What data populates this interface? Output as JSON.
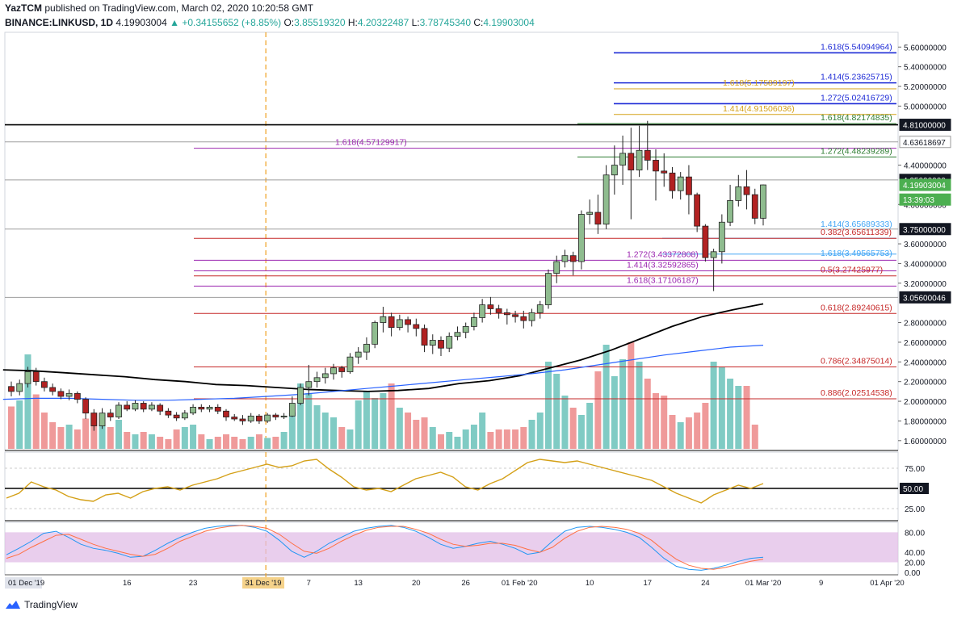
{
  "header": {
    "author": "YazTCM",
    "published_text": "published on TradingView.com, March 02, 2020 10:20:58 GMT",
    "symbol": "BINANCE:LINKUSD, 1D",
    "last": "4.19903004",
    "change": "▲ +0.34155652 (+8.85%)",
    "o_label": "O:",
    "o": "3.85519320",
    "h_label": "H:",
    "h": "4.20322487",
    "l_label": "L:",
    "l": "3.78745340",
    "c_label": "C:",
    "c": "4.19903004"
  },
  "footer": {
    "brand": "TradingView"
  },
  "colors": {
    "up": "#26a69a",
    "down": "#ef5350",
    "candle_up_fill": "#8fbc8f",
    "candle_down_fill": "#b22222",
    "vol_up": "#80cbc4",
    "vol_down": "#ef9a9a",
    "ma_black": "#000000",
    "ma_blue": "#2962ff",
    "fib_blue": "#1e2bd6",
    "fib_gold": "#d4a017",
    "fib_green": "#2e7d32",
    "fib_purple": "#9c27b0",
    "fib_red": "#c62828",
    "rsi_line": "#d4a017",
    "stoch_k": "#2196f3",
    "stoch_d": "#ff7043",
    "stoch_band": "#e1bee7"
  },
  "chart_data": [
    {
      "type": "candlestick",
      "title": "LINKUSD 1D",
      "x_tick_labels": [
        "01 Dec '19",
        "16",
        "23",
        "31 Dec '19",
        "7",
        "13",
        "20",
        "26",
        "01 Feb '20",
        "10",
        "17",
        "24",
        "01 Mar '20",
        "9",
        "01 Apr '20"
      ],
      "y_tick_labels": [
        "5.60000000",
        "5.40000000",
        "5.20000000",
        "5.00000000",
        "4.40000000",
        "4.00000000",
        "3.60000000",
        "3.40000000",
        "3.20000000",
        "2.80000000",
        "2.60000000",
        "2.40000000",
        "2.20000000",
        "2.00000000",
        "1.80000000",
        "1.60000000"
      ],
      "ylim": [
        1.5,
        5.75
      ],
      "price_badges": [
        {
          "label": "4.81000000",
          "value": 4.81,
          "style": "dark"
        },
        {
          "label": "4.63618697",
          "value": 4.63618697,
          "style": "light"
        },
        {
          "label": "4.25000000",
          "value": 4.25,
          "style": "dark"
        },
        {
          "label": "4.19903004",
          "value": 4.19903004,
          "style": "green"
        },
        {
          "label": "13:39:03",
          "value": 4.05,
          "style": "green"
        },
        {
          "label": "3.75000000",
          "value": 3.75,
          "style": "dark"
        },
        {
          "label": "3.05600046",
          "value": 3.05600046,
          "style": "dark"
        }
      ],
      "candles": [
        [
          2.15,
          2.1,
          2.2,
          2.05
        ],
        [
          2.1,
          2.18,
          2.22,
          2.06
        ],
        [
          2.18,
          2.3,
          2.35,
          2.14
        ],
        [
          2.3,
          2.2,
          2.34,
          2.16
        ],
        [
          2.2,
          2.14,
          2.24,
          2.1
        ],
        [
          2.14,
          2.1,
          2.18,
          2.06
        ],
        [
          2.1,
          2.05,
          2.13,
          2.02
        ],
        [
          2.05,
          2.08,
          2.12,
          2.01
        ],
        [
          2.08,
          2.02,
          2.1,
          1.98
        ],
        [
          2.02,
          1.88,
          2.04,
          1.82
        ],
        [
          1.88,
          1.75,
          1.92,
          1.7
        ],
        [
          1.75,
          1.88,
          1.93,
          1.72
        ],
        [
          1.88,
          1.84,
          1.92,
          1.8
        ],
        [
          1.84,
          1.96,
          1.99,
          1.82
        ],
        [
          1.96,
          1.92,
          2.0,
          1.9
        ],
        [
          1.92,
          1.98,
          2.01,
          1.9
        ],
        [
          1.98,
          1.92,
          2.0,
          1.89
        ],
        [
          1.92,
          1.96,
          1.99,
          1.9
        ],
        [
          1.96,
          1.9,
          1.98,
          1.86
        ],
        [
          1.9,
          1.86,
          1.93,
          1.83
        ],
        [
          1.86,
          1.83,
          1.89,
          1.8
        ],
        [
          1.83,
          1.88,
          1.91,
          1.81
        ],
        [
          1.88,
          1.94,
          1.97,
          1.86
        ],
        [
          1.94,
          1.92,
          1.97,
          1.89
        ],
        [
          1.92,
          1.94,
          1.96,
          1.89
        ],
        [
          1.94,
          1.9,
          1.97,
          1.87
        ],
        [
          1.9,
          1.84,
          1.92,
          1.8
        ],
        [
          1.84,
          1.82,
          1.87,
          1.8
        ],
        [
          1.82,
          1.8,
          1.86,
          1.76
        ],
        [
          1.8,
          1.85,
          1.88,
          1.78
        ],
        [
          1.85,
          1.8,
          1.87,
          1.77
        ],
        [
          1.8,
          1.86,
          1.88,
          1.78
        ],
        [
          1.86,
          1.84,
          1.88,
          1.81
        ],
        [
          1.84,
          1.85,
          1.88,
          1.82
        ],
        [
          1.85,
          1.98,
          2.05,
          1.84
        ],
        [
          1.98,
          2.14,
          2.18,
          1.96
        ],
        [
          2.14,
          2.2,
          2.37,
          2.06
        ],
        [
          2.2,
          2.24,
          2.3,
          2.14
        ],
        [
          2.24,
          2.28,
          2.34,
          2.18
        ],
        [
          2.28,
          2.34,
          2.38,
          2.22
        ],
        [
          2.34,
          2.3,
          2.36,
          2.24
        ],
        [
          2.3,
          2.45,
          2.49,
          2.28
        ],
        [
          2.45,
          2.5,
          2.55,
          2.38
        ],
        [
          2.5,
          2.58,
          2.65,
          2.42
        ],
        [
          2.58,
          2.8,
          2.82,
          2.54
        ],
        [
          2.8,
          2.86,
          2.96,
          2.7
        ],
        [
          2.86,
          2.75,
          2.9,
          2.66
        ],
        [
          2.75,
          2.83,
          2.88,
          2.72
        ],
        [
          2.83,
          2.78,
          2.86,
          2.7
        ],
        [
          2.78,
          2.74,
          2.84,
          2.66
        ],
        [
          2.74,
          2.57,
          2.78,
          2.5
        ],
        [
          2.57,
          2.62,
          2.68,
          2.48
        ],
        [
          2.62,
          2.54,
          2.66,
          2.46
        ],
        [
          2.54,
          2.66,
          2.7,
          2.5
        ],
        [
          2.66,
          2.7,
          2.76,
          2.62
        ],
        [
          2.7,
          2.76,
          2.8,
          2.64
        ],
        [
          2.76,
          2.85,
          2.9,
          2.72
        ],
        [
          2.85,
          2.98,
          3.04,
          2.8
        ],
        [
          2.98,
          2.94,
          3.06,
          2.88
        ],
        [
          2.94,
          2.9,
          2.98,
          2.84
        ],
        [
          2.9,
          2.88,
          2.94,
          2.78
        ],
        [
          2.88,
          2.86,
          2.92,
          2.8
        ],
        [
          2.86,
          2.82,
          2.92,
          2.74
        ],
        [
          2.82,
          2.9,
          2.94,
          2.76
        ],
        [
          2.9,
          2.98,
          3.02,
          2.84
        ],
        [
          2.98,
          3.3,
          3.34,
          2.94
        ],
        [
          3.3,
          3.42,
          3.48,
          3.2
        ],
        [
          3.42,
          3.48,
          3.54,
          3.36
        ],
        [
          3.48,
          3.42,
          3.52,
          3.28
        ],
        [
          3.42,
          3.9,
          3.94,
          3.34
        ],
        [
          3.9,
          3.92,
          4.05,
          3.8
        ],
        [
          3.92,
          3.8,
          4.1,
          3.7
        ],
        [
          3.8,
          4.3,
          4.4,
          3.75
        ],
        [
          4.3,
          4.4,
          4.6,
          4.1
        ],
        [
          4.4,
          4.52,
          4.7,
          4.2
        ],
        [
          4.52,
          4.35,
          4.78,
          3.85
        ],
        [
          4.35,
          4.55,
          4.8,
          4.28
        ],
        [
          4.55,
          4.45,
          4.85,
          4.35
        ],
        [
          4.45,
          4.34,
          4.56,
          4.04
        ],
        [
          4.34,
          4.32,
          4.52,
          4.18
        ],
        [
          4.32,
          4.14,
          4.38,
          4.06
        ],
        [
          4.14,
          4.28,
          4.33,
          4.05
        ],
        [
          4.28,
          4.1,
          4.4,
          3.9
        ],
        [
          4.1,
          3.78,
          4.12,
          3.72
        ],
        [
          3.78,
          3.46,
          3.8,
          3.42
        ],
        [
          3.46,
          3.52,
          3.55,
          3.12
        ],
        [
          3.52,
          3.82,
          3.9,
          3.4
        ],
        [
          3.82,
          4.04,
          4.2,
          3.78
        ],
        [
          4.04,
          4.18,
          4.3,
          3.98
        ],
        [
          4.18,
          4.1,
          4.35,
          3.95
        ],
        [
          4.1,
          3.86,
          4.16,
          3.8
        ],
        [
          3.86,
          4.19903004,
          4.20322487,
          3.7874534
        ]
      ],
      "volumes": [
        0.35,
        0.4,
        0.78,
        0.45,
        0.3,
        0.22,
        0.18,
        0.2,
        0.16,
        0.25,
        0.3,
        0.2,
        0.18,
        0.24,
        0.14,
        0.12,
        0.14,
        0.12,
        0.1,
        0.08,
        0.16,
        0.18,
        0.2,
        0.12,
        0.08,
        0.1,
        0.12,
        0.1,
        0.08,
        0.1,
        0.12,
        0.09,
        0.1,
        0.14,
        0.3,
        0.54,
        0.46,
        0.36,
        0.3,
        0.26,
        0.18,
        0.16,
        0.4,
        0.48,
        0.42,
        0.46,
        0.54,
        0.34,
        0.3,
        0.24,
        0.26,
        0.18,
        0.12,
        0.14,
        0.1,
        0.16,
        0.2,
        0.3,
        0.14,
        0.16,
        0.16,
        0.16,
        0.18,
        0.24,
        0.3,
        0.72,
        0.62,
        0.44,
        0.34,
        0.28,
        0.38,
        0.64,
        0.86,
        0.6,
        0.74,
        0.88,
        0.72,
        0.58,
        0.46,
        0.44,
        0.28,
        0.22,
        0.26,
        0.3,
        0.38,
        0.72,
        0.68,
        0.58,
        0.52,
        0.52,
        0.2
      ],
      "ma_black": [
        2.32,
        2.31,
        2.29,
        2.27,
        2.25,
        2.22,
        2.2,
        2.17,
        2.16,
        2.14,
        2.12,
        2.11,
        2.1,
        2.11,
        2.13,
        2.18,
        2.21,
        2.26,
        2.34,
        2.42,
        2.52,
        2.64,
        2.76,
        2.86,
        2.93,
        2.99
      ],
      "ma_blue": [
        2.02,
        2.03,
        2.03,
        2.02,
        2.01,
        2.01,
        2.02,
        2.03,
        2.05,
        2.07,
        2.1,
        2.13,
        2.16,
        2.19,
        2.22,
        2.25,
        2.28,
        2.32,
        2.37,
        2.42,
        2.47,
        2.51,
        2.55,
        2.57
      ],
      "fib_levels": [
        {
          "label": "1.618(5.54094964)",
          "value": 5.54094964,
          "color": "blue"
        },
        {
          "label": "1.414(5.23625715)",
          "value": 5.23625715,
          "color": "blue"
        },
        {
          "label": "1.618(5.17589197)",
          "value": 5.17589197,
          "color": "gold"
        },
        {
          "label": "1.272(5.02416729)",
          "value": 5.02416729,
          "color": "blue"
        },
        {
          "label": "1.414(4.91506036)",
          "value": 4.91506036,
          "color": "gold"
        },
        {
          "label": "1.618(4.82174835)",
          "value": 4.82174835,
          "color": "green"
        },
        {
          "label": "1.618(4.57129917)",
          "value": 4.57129917,
          "color": "purple"
        },
        {
          "label": "1.272(4.48239289)",
          "value": 4.48239289,
          "color": "green"
        },
        {
          "label": "1.414(3.65689333)",
          "value": 3.65689333,
          "color": "lightblue"
        },
        {
          "label": "0.382(3.65611339)",
          "value": 3.65611339,
          "color": "red"
        },
        {
          "label": "1.618(3.49565753)",
          "value": 3.49565753,
          "color": "lightblue"
        },
        {
          "label": "1.272(3.43372808)",
          "value": 3.43372808,
          "color": "purple"
        },
        {
          "label": "1.414(3.32592865)",
          "value": 3.32592865,
          "color": "purple"
        },
        {
          "label": "1.618(3.17106187)",
          "value": 3.17106187,
          "color": "purple"
        },
        {
          "label": "0.5(3.27425977)",
          "value": 3.27425977,
          "color": "red"
        },
        {
          "label": "0.618(2.89240615)",
          "value": 2.89240615,
          "color": "red"
        },
        {
          "label": "0.786(2.34875014)",
          "value": 2.34875014,
          "color": "red"
        },
        {
          "label": "0.886(2.02514538)",
          "value": 2.02514538,
          "color": "red"
        }
      ],
      "horizontal_lines": [
        4.81,
        4.63618697,
        4.25,
        3.75,
        3.05600046
      ]
    },
    {
      "type": "line",
      "title": "RSI",
      "y_tick_labels": [
        "75.00",
        "50.00",
        "25.00"
      ],
      "ylim": [
        10,
        95
      ],
      "highlight_label": "50.00",
      "values": [
        38,
        44,
        58,
        52,
        48,
        40,
        36,
        34,
        42,
        44,
        38,
        46,
        50,
        52,
        48,
        54,
        58,
        62,
        68,
        72,
        76,
        80,
        76,
        78,
        84,
        86,
        74,
        64,
        52,
        48,
        50,
        46,
        54,
        62,
        66,
        70,
        64,
        52,
        48,
        56,
        62,
        72,
        82,
        86,
        84,
        82,
        84,
        80,
        76,
        72,
        68,
        64,
        60,
        52,
        44,
        38,
        32,
        42,
        48,
        54,
        50,
        56
      ]
    },
    {
      "type": "line",
      "title": "Stoch RSI",
      "y_tick_labels": [
        "80.00",
        "40.00",
        "20.00",
        "0.00"
      ],
      "ylim": [
        -5,
        100
      ],
      "series": [
        {
          "values": [
            35,
            48,
            62,
            78,
            82,
            70,
            56,
            48,
            44,
            38,
            30,
            32,
            44,
            58,
            70,
            80,
            88,
            92,
            94,
            94,
            90,
            82,
            64,
            42,
            30,
            42,
            58,
            70,
            82,
            88,
            92,
            94,
            90,
            82,
            70,
            56,
            48,
            52,
            58,
            62,
            56,
            48,
            36,
            40,
            62,
            82,
            90,
            92,
            90,
            86,
            80,
            70,
            50,
            28,
            12,
            6,
            4,
            8,
            14,
            22,
            28,
            30
          ]
        },
        {
          "values": [
            28,
            36,
            50,
            62,
            74,
            76,
            66,
            56,
            48,
            42,
            36,
            32,
            36,
            48,
            62,
            72,
            82,
            88,
            92,
            94,
            92,
            88,
            76,
            58,
            42,
            38,
            48,
            62,
            74,
            84,
            90,
            92,
            92,
            86,
            78,
            66,
            56,
            52,
            54,
            58,
            58,
            54,
            46,
            40,
            50,
            68,
            82,
            90,
            92,
            90,
            86,
            78,
            64,
            44,
            26,
            14,
            8,
            6,
            10,
            16,
            22,
            26
          ]
        }
      ]
    }
  ]
}
